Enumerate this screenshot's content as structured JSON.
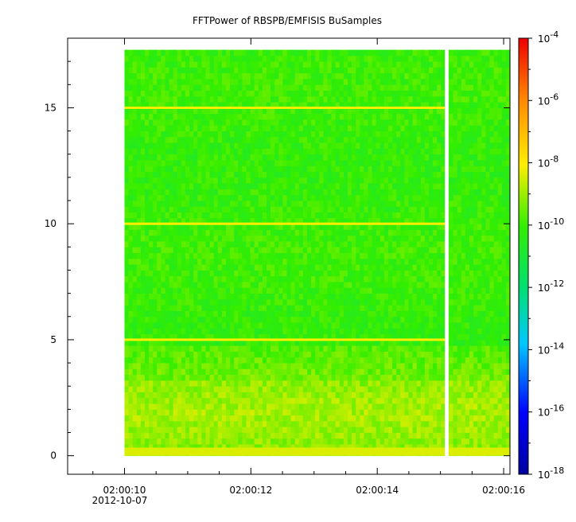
{
  "chart_data": {
    "type": "heatmap",
    "title": "FFTPower of RBSPB/EMFISIS  BuSamples",
    "xlabel": "",
    "ylabel": "",
    "x_axis": {
      "type": "time",
      "range": [
        "2012-10-07 02:00:09.1",
        "2012-10-07 02:00:16.1"
      ],
      "ticks": [
        {
          "value": "02:00:10",
          "sublabel": "2012-10-07"
        },
        {
          "value": "02:00:12",
          "sublabel": ""
        },
        {
          "value": "02:00:14",
          "sublabel": ""
        },
        {
          "value": "02:00:16",
          "sublabel": ""
        }
      ]
    },
    "y_axis": {
      "range": [
        -0.8,
        18
      ],
      "ticks": [
        0,
        5,
        10,
        15
      ]
    },
    "colorbar": {
      "scale": "log",
      "range": [
        1e-18,
        0.0001
      ],
      "tick_exponents": [
        -4,
        -6,
        -8,
        -10,
        -12,
        -14,
        -16,
        -18
      ],
      "colormap": "rainbow (blue-cyan-green-yellow-red)"
    },
    "data_extent": {
      "time_start": "02:00:10.0",
      "time_end": "02:00:16.1",
      "freq_min": 0,
      "freq_max": 17.5
    },
    "data_gap": {
      "time": "02:00:15.1"
    },
    "features": [
      {
        "type": "horizontal_line",
        "freq": 15,
        "power_level": "~1e-8"
      },
      {
        "type": "horizontal_line",
        "freq": 10,
        "power_level": "~1e-8"
      },
      {
        "type": "horizontal_line",
        "freq": 5,
        "power_level": "~1e-8"
      },
      {
        "type": "enhanced_band",
        "freq_range": [
          0,
          3.3
        ],
        "power_level": "~1e-9 to 1e-8"
      },
      {
        "type": "background",
        "freq_range": [
          3.3,
          17.5
        ],
        "power_level": "~1e-10"
      }
    ],
    "grid": false,
    "legend": "none"
  }
}
